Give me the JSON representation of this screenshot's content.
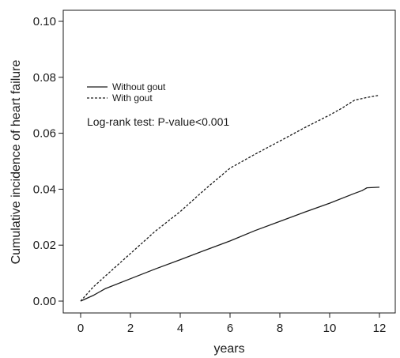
{
  "chart_data": {
    "type": "line",
    "xlabel": "years",
    "ylabel": "Cumulative incidence of heart failure",
    "xlim": [
      0,
      12
    ],
    "ylim": [
      0,
      0.1
    ],
    "x_ticks": [
      0,
      2,
      4,
      6,
      8,
      10,
      12
    ],
    "x_tick_labels": [
      "0",
      "2",
      "4",
      "6",
      "8",
      "10",
      "12"
    ],
    "y_ticks": [
      0,
      0.02,
      0.04,
      0.06,
      0.08,
      0.1
    ],
    "y_tick_labels": [
      "0.00",
      "0.02",
      "0.04",
      "0.06",
      "0.08",
      "0.10"
    ],
    "grid": false,
    "legend_position": "top-left",
    "annotation": "Log-rank test: P-value<0.001",
    "series": [
      {
        "name": "Without gout",
        "style": "solid",
        "color": "#1a1a1a",
        "x": [
          0,
          0.5,
          1,
          2,
          3,
          4,
          5,
          6,
          7,
          8,
          9,
          10,
          11,
          11.3,
          11.5,
          12
        ],
        "y": [
          0,
          0.002,
          0.0045,
          0.008,
          0.0115,
          0.0148,
          0.0182,
          0.0215,
          0.0252,
          0.0285,
          0.0318,
          0.035,
          0.0385,
          0.0395,
          0.0405,
          0.0407
        ]
      },
      {
        "name": "With gout",
        "style": "dashed",
        "color": "#1a1a1a",
        "x": [
          0,
          0.5,
          1,
          2,
          3,
          4,
          5,
          6,
          7,
          8,
          9,
          10,
          10.5,
          11,
          11.5,
          12
        ],
        "y": [
          0,
          0.005,
          0.009,
          0.017,
          0.025,
          0.032,
          0.04,
          0.0475,
          0.0525,
          0.0572,
          0.062,
          0.0665,
          0.069,
          0.0718,
          0.0728,
          0.0736
        ]
      }
    ]
  }
}
